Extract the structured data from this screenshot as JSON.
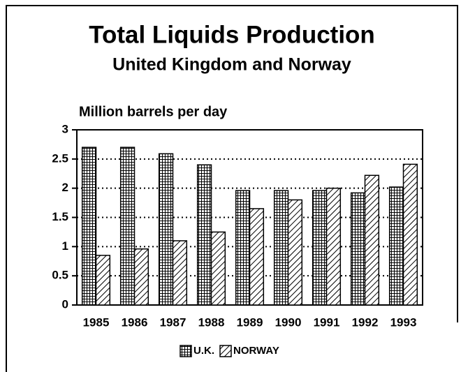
{
  "chart_data": {
    "type": "bar",
    "title": "Total Liquids Production",
    "subtitle": "United Kingdom and Norway",
    "y_label": "Million barrels per day",
    "categories": [
      "1985",
      "1986",
      "1987",
      "1988",
      "1989",
      "1990",
      "1991",
      "1992",
      "1993"
    ],
    "series": [
      {
        "name": "U.K.",
        "pattern": "grid",
        "color": "#000000",
        "values": [
          2.7,
          2.7,
          2.59,
          2.4,
          1.96,
          1.96,
          1.96,
          1.92,
          2.02
        ]
      },
      {
        "name": "NORWAY",
        "pattern": "hatch",
        "color": "#000000",
        "values": [
          0.85,
          0.96,
          1.1,
          1.25,
          1.65,
          1.8,
          2.0,
          2.22,
          2.41
        ]
      }
    ],
    "ylim": [
      0,
      3
    ],
    "yticks": [
      0,
      0.5,
      1,
      1.5,
      2,
      2.5,
      3
    ],
    "grid": true,
    "legend": "bottom"
  }
}
